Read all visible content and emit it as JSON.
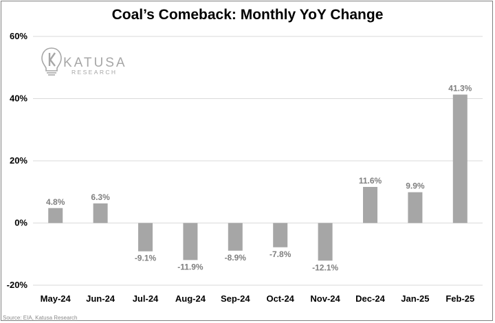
{
  "chart_data": {
    "type": "bar",
    "title": "Coal’s Comeback: Monthly YoY Change",
    "categories": [
      "May-24",
      "Jun-24",
      "Jul-24",
      "Aug-24",
      "Sep-24",
      "Oct-24",
      "Nov-24",
      "Dec-24",
      "Jan-25",
      "Feb-25"
    ],
    "values": [
      4.8,
      6.3,
      -9.1,
      -11.9,
      -8.9,
      -7.8,
      -12.1,
      11.6,
      9.9,
      41.3
    ],
    "data_labels": [
      "4.8%",
      "6.3%",
      "-9.1%",
      "-11.9%",
      "-8.9%",
      "-7.8%",
      "-12.1%",
      "11.6%",
      "9.9%",
      "41.3%"
    ],
    "y_ticks": [
      -20,
      0,
      20,
      40,
      60
    ],
    "y_tick_labels": [
      "-20%",
      "0%",
      "20%",
      "40%",
      "60%"
    ],
    "ylim": [
      -20,
      60
    ],
    "xlabel": "",
    "ylabel": "",
    "grid": true,
    "legend": "none",
    "bar_color": "#a6a6a6",
    "gridline_color": "#d9d9d9",
    "label_color": "#7f7f7f"
  },
  "logo": {
    "name": "KATUSA",
    "sub": "RESEARCH",
    "icon": "lightbulb-k-icon"
  },
  "source": "Source: EIA, Katusa Research"
}
